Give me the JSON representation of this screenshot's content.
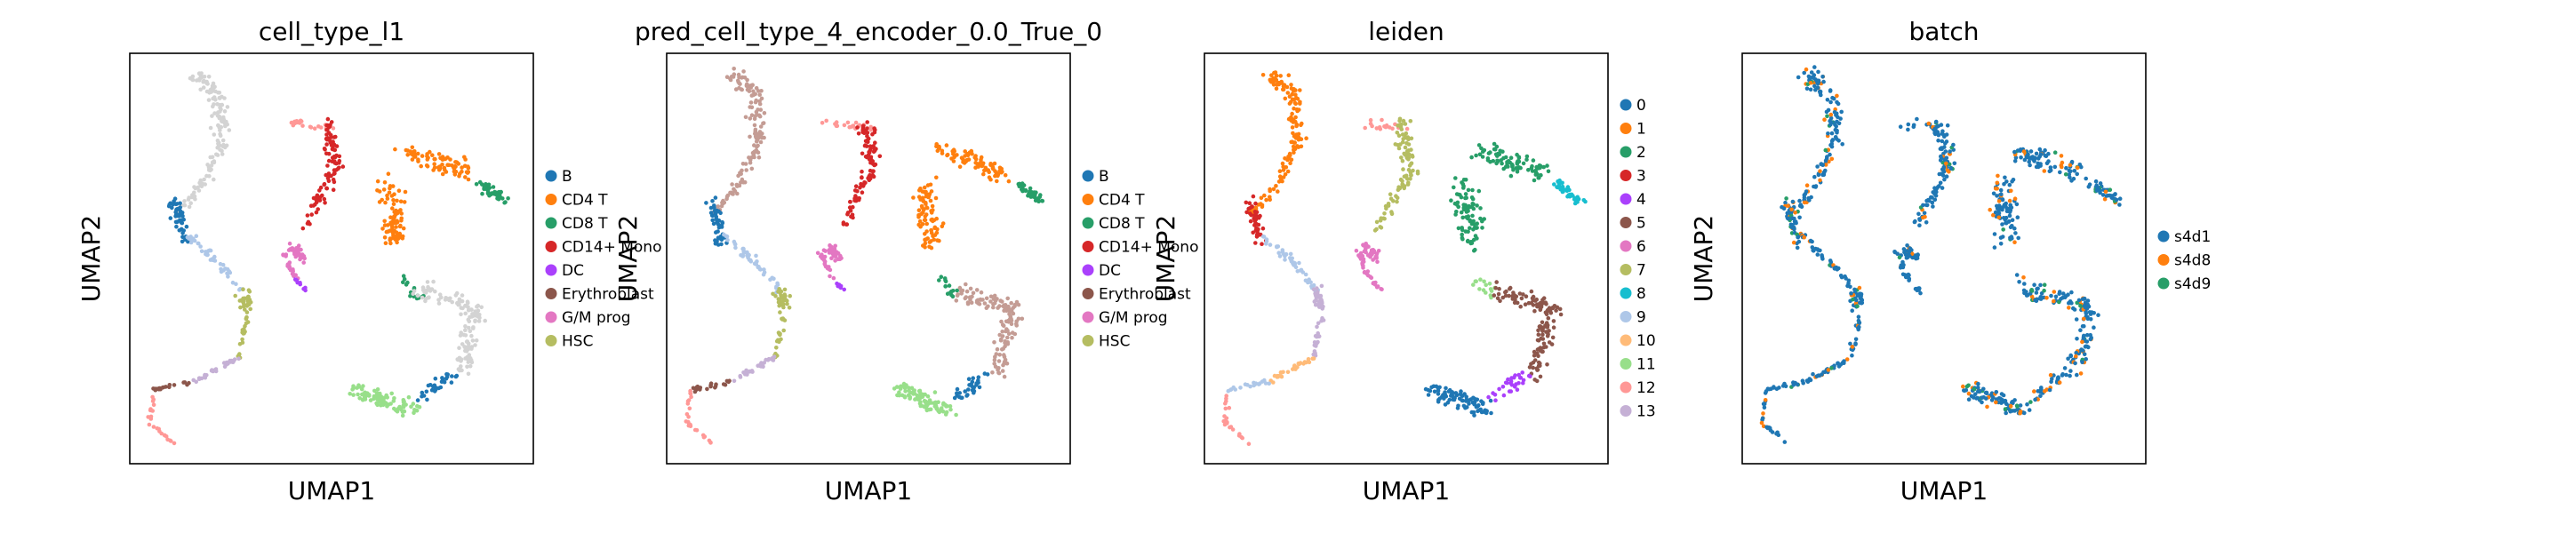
{
  "chart_data": [
    {
      "type": "scatter",
      "title": "cell_type_l1",
      "xlabel": "UMAP1",
      "ylabel": "UMAP2",
      "grid": false,
      "legend_position": "right",
      "legend": [
        {
          "label": "B",
          "color": "#1f77b4"
        },
        {
          "label": "CD4 T",
          "color": "#ff7f0e"
        },
        {
          "label": "CD8 T",
          "color": "#279e68"
        },
        {
          "label": "CD14+ Mono",
          "color": "#d62728"
        },
        {
          "label": "DC",
          "color": "#aa40fc"
        },
        {
          "label": "Erythroblast",
          "color": "#8c564b"
        },
        {
          "label": "G/M prog",
          "color": "#e377c2"
        },
        {
          "label": "HSC",
          "color": "#b5bd61"
        }
      ],
      "colormap": [
        "#d3d3d3",
        "#1f77b4",
        "#aec7e8",
        "#d62728",
        "#e377c2",
        "#aa40fc",
        "#b5bd61",
        "#c5b0d5",
        "#8c564b",
        "#ff9896",
        "#ff7f0e",
        "#279e68",
        "#279e68",
        "#d3d3d3",
        "#1f77b4",
        "#98df8a"
      ]
    },
    {
      "type": "scatter",
      "title": "pred_cell_type_4_encoder_0.0_True_0",
      "xlabel": "UMAP1",
      "ylabel": "UMAP2",
      "grid": false,
      "legend_position": "right",
      "legend": [
        {
          "label": "B",
          "color": "#1f77b4"
        },
        {
          "label": "CD4 T",
          "color": "#ff7f0e"
        },
        {
          "label": "CD8 T",
          "color": "#279e68"
        },
        {
          "label": "CD14+ Mono",
          "color": "#d62728"
        },
        {
          "label": "DC",
          "color": "#aa40fc"
        },
        {
          "label": "Erythroblast",
          "color": "#8c564b"
        },
        {
          "label": "G/M prog",
          "color": "#e377c2"
        },
        {
          "label": "HSC",
          "color": "#b5bd61"
        }
      ],
      "colormap": [
        "#c49c94",
        "#1f77b4",
        "#aec7e8",
        "#d62728",
        "#e377c2",
        "#aa40fc",
        "#b5bd61",
        "#c5b0d5",
        "#8c564b",
        "#ff9896",
        "#ff7f0e",
        "#279e68",
        "#279e68",
        "#c49c94",
        "#1f77b4",
        "#98df8a"
      ]
    },
    {
      "type": "scatter",
      "title": "leiden",
      "xlabel": "UMAP1",
      "ylabel": "UMAP2",
      "grid": false,
      "legend_position": "right",
      "legend": [
        {
          "label": "0",
          "color": "#1f77b4"
        },
        {
          "label": "1",
          "color": "#ff7f0e"
        },
        {
          "label": "2",
          "color": "#279e68"
        },
        {
          "label": "3",
          "color": "#d62728"
        },
        {
          "label": "4",
          "color": "#aa40fc"
        },
        {
          "label": "5",
          "color": "#8c564b"
        },
        {
          "label": "6",
          "color": "#e377c2"
        },
        {
          "label": "7",
          "color": "#b5bd61"
        },
        {
          "label": "8",
          "color": "#17becf"
        },
        {
          "label": "9",
          "color": "#aec7e8"
        },
        {
          "label": "10",
          "color": "#ffbb78"
        },
        {
          "label": "11",
          "color": "#98df8a"
        },
        {
          "label": "12",
          "color": "#ff9896"
        },
        {
          "label": "13",
          "color": "#c5b0d5"
        }
      ],
      "colormap": [
        "#ff7f0e",
        "#d62728",
        "#aec7e8",
        "#b5bd61",
        "#e377c2",
        "#e377c2",
        "#c5b0d5",
        "#ffbb78",
        "#aec7e8",
        "#ff9896",
        "#279e68",
        "#17becf",
        "#98df8a",
        "#8c564b",
        "#aa40fc",
        "#1f77b4"
      ]
    },
    {
      "type": "scatter",
      "title": "batch",
      "xlabel": "UMAP1",
      "ylabel": "UMAP2",
      "grid": false,
      "legend_position": "right",
      "legend": [
        {
          "label": "s4d1",
          "color": "#1f77b4"
        },
        {
          "label": "s4d8",
          "color": "#ff7f0e"
        },
        {
          "label": "s4d9",
          "color": "#279e68"
        }
      ],
      "colormap": [
        "#1f77b4",
        "#1f77b4",
        "#1f77b4",
        "#1f77b4",
        "#1f77b4",
        "#1f77b4",
        "#1f77b4",
        "#1f77b4",
        "#1f77b4",
        "#1f77b4",
        "#1f77b4",
        "#1f77b4",
        "#1f77b4",
        "#1f77b4",
        "#1f77b4",
        "#1f77b4"
      ],
      "speckle_colors": [
        "#ff7f0e",
        "#279e68"
      ]
    }
  ]
}
